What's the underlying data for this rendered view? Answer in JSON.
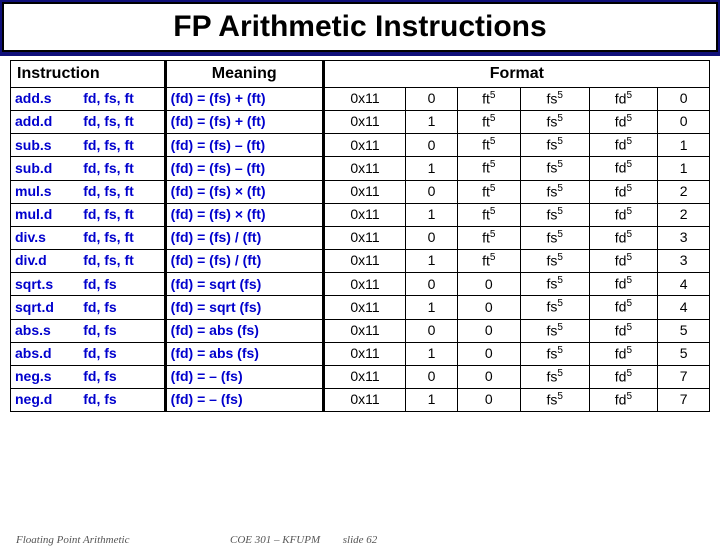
{
  "title": "FP Arithmetic Instructions",
  "headers": {
    "instruction": "Instruction",
    "meaning": "Meaning",
    "format": "Format"
  },
  "colors": {
    "header_bg": "#10107a",
    "instr_text": "#0000cd",
    "border": "#000000",
    "bg": "#ffffff"
  },
  "rows": [
    {
      "instr": "add.s",
      "ops": "fd, fs, ft",
      "meaning": "(fd) = (fs) + (ft)",
      "opc": "0x11",
      "fmt": "0",
      "ft": "ft",
      "fs": "fs",
      "fd": "fd",
      "func": "0"
    },
    {
      "instr": "add.d",
      "ops": "fd, fs, ft",
      "meaning": "(fd) = (fs) + (ft)",
      "opc": "0x11",
      "fmt": "1",
      "ft": "ft",
      "fs": "fs",
      "fd": "fd",
      "func": "0"
    },
    {
      "instr": "sub.s",
      "ops": "fd, fs, ft",
      "meaning": "(fd) = (fs) – (ft)",
      "opc": "0x11",
      "fmt": "0",
      "ft": "ft",
      "fs": "fs",
      "fd": "fd",
      "func": "1"
    },
    {
      "instr": "sub.d",
      "ops": "fd, fs, ft",
      "meaning": "(fd) = (fs) – (ft)",
      "opc": "0x11",
      "fmt": "1",
      "ft": "ft",
      "fs": "fs",
      "fd": "fd",
      "func": "1"
    },
    {
      "instr": "mul.s",
      "ops": "fd, fs, ft",
      "meaning": "(fd) = (fs) × (ft)",
      "opc": "0x11",
      "fmt": "0",
      "ft": "ft",
      "fs": "fs",
      "fd": "fd",
      "func": "2"
    },
    {
      "instr": "mul.d",
      "ops": "fd, fs, ft",
      "meaning": "(fd) = (fs) × (ft)",
      "opc": "0x11",
      "fmt": "1",
      "ft": "ft",
      "fs": "fs",
      "fd": "fd",
      "func": "2"
    },
    {
      "instr": "div.s",
      "ops": "fd, fs, ft",
      "meaning": "(fd) = (fs) / (ft)",
      "opc": "0x11",
      "fmt": "0",
      "ft": "ft",
      "fs": "fs",
      "fd": "fd",
      "func": "3"
    },
    {
      "instr": "div.d",
      "ops": "fd, fs, ft",
      "meaning": "(fd) = (fs) / (ft)",
      "opc": "0x11",
      "fmt": "1",
      "ft": "ft",
      "fs": "fs",
      "fd": "fd",
      "func": "3"
    },
    {
      "instr": "sqrt.s",
      "ops": "fd, fs",
      "meaning": "(fd) = sqrt (fs)",
      "opc": "0x11",
      "fmt": "0",
      "ft": "0",
      "fs": "fs",
      "fd": "fd",
      "func": "4"
    },
    {
      "instr": "sqrt.d",
      "ops": "fd, fs",
      "meaning": "(fd) = sqrt (fs)",
      "opc": "0x11",
      "fmt": "1",
      "ft": "0",
      "fs": "fs",
      "fd": "fd",
      "func": "4"
    },
    {
      "instr": "abs.s",
      "ops": "fd, fs",
      "meaning": "(fd) = abs (fs)",
      "opc": "0x11",
      "fmt": "0",
      "ft": "0",
      "fs": "fs",
      "fd": "fd",
      "func": "5"
    },
    {
      "instr": "abs.d",
      "ops": "fd, fs",
      "meaning": "(fd) = abs (fs)",
      "opc": "0x11",
      "fmt": "1",
      "ft": "0",
      "fs": "fs",
      "fd": "fd",
      "func": "5"
    },
    {
      "instr": "neg.s",
      "ops": "fd, fs",
      "meaning": "(fd) = – (fs)",
      "opc": "0x11",
      "fmt": "0",
      "ft": "0",
      "fs": "fs",
      "fd": "fd",
      "func": "7"
    },
    {
      "instr": "neg.d",
      "ops": "fd, fs",
      "meaning": "(fd) = – (fs)",
      "opc": "0x11",
      "fmt": "1",
      "ft": "0",
      "fs": "fs",
      "fd": "fd",
      "func": "7"
    }
  ],
  "sup": "5",
  "footer": {
    "left": "Floating Point Arithmetic",
    "mid": "COE 301 – KFUPM",
    "center": "slide 62"
  }
}
